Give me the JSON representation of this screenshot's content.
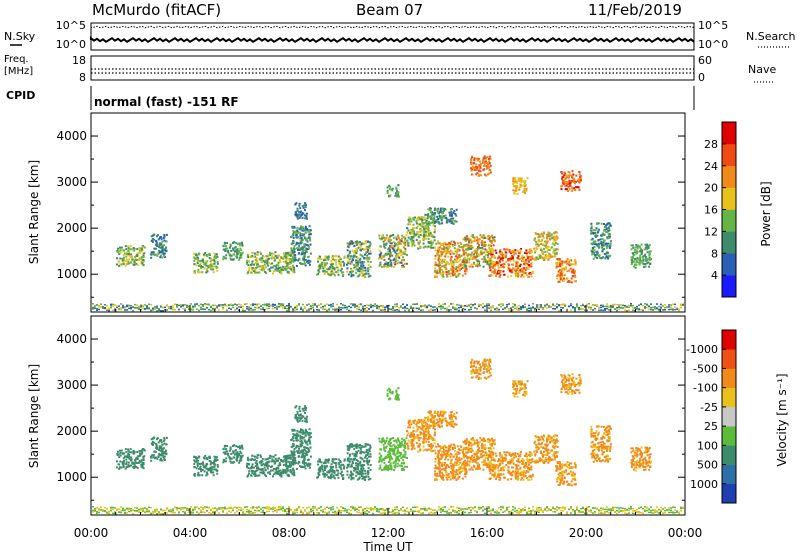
{
  "header": {
    "station": "McMurdo (fitACF)",
    "beam": "Beam 07",
    "date": "11/Feb/2019"
  },
  "top_panels": {
    "nsky_label": "N.Sky",
    "nsky_ticks": [
      "10^5",
      "10^0"
    ],
    "nsearch_label": "N.Search",
    "nsearch_ticks": [
      "10^5",
      "10^0"
    ],
    "freq_label_line1": "Freq.",
    "freq_label_line2": "[MHz]",
    "freq_ticks": [
      "18",
      "8"
    ],
    "nave_label": "Nave",
    "nave_ticks": [
      "60",
      "0"
    ],
    "cpid_label": "CPID",
    "cpid_text": "normal (fast) -151 RF"
  },
  "chart_data": [
    {
      "type": "heatmap",
      "ylabel": "Slant Range [km]",
      "ylim": [
        180,
        4500
      ],
      "yticks": [
        "1000",
        "2000",
        "3000",
        "4000"
      ],
      "colorbar_label": "Power [dB]",
      "colorbar_ticks": [
        "4",
        "8",
        "12",
        "16",
        "20",
        "24",
        "28"
      ],
      "colorbar_colors": [
        "#1a1aff",
        "#2a5fb5",
        "#3c8b6a",
        "#66b446",
        "#e6c21a",
        "#f08a1a",
        "#f04a14",
        "#e00000"
      ]
    },
    {
      "type": "heatmap",
      "ylabel": "Slant Range [km]",
      "ylim": [
        180,
        4500
      ],
      "yticks": [
        "1000",
        "2000",
        "3000",
        "4000"
      ],
      "colorbar_label": "Velocity [m s⁻¹]",
      "colorbar_ticks": [
        "1000",
        "500",
        "100",
        "25",
        "-25",
        "-100",
        "-500",
        "-1000"
      ],
      "colorbar_colors": [
        "#1e3fb0",
        "#2f6fa8",
        "#3c8b6a",
        "#5dbb3a",
        "#c8c8c8",
        "#e8c21a",
        "#f08a1a",
        "#f05014",
        "#e00000"
      ]
    }
  ],
  "x_axis": {
    "ticks": [
      "00:00",
      "04:00",
      "08:00",
      "12:00",
      "16:00",
      "20:00",
      "00:00"
    ],
    "label": "Time UT"
  }
}
